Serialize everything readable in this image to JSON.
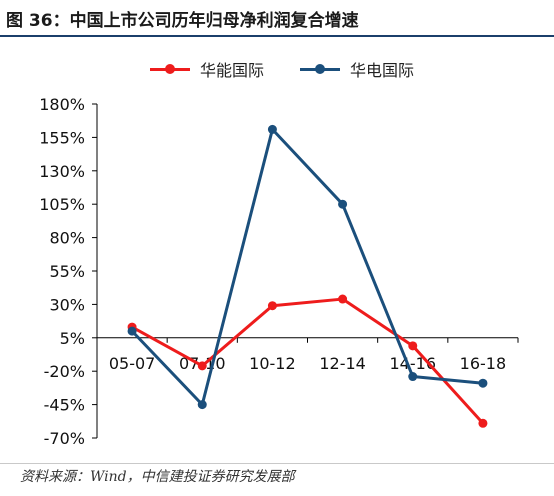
{
  "figure": {
    "title": "图 36：中国上市公司历年归母净利润复合增速",
    "source": "资料来源：Wind，中信建投证券研究发展部"
  },
  "chart_data": {
    "type": "line",
    "title": "图 36：中国上市公司历年归母净利润复合增速",
    "categories": [
      "05-07",
      "07-10",
      "10-12",
      "12-14",
      "14-16",
      "16-18"
    ],
    "y_ticks": [
      "180%",
      "155%",
      "130%",
      "105%",
      "80%",
      "55%",
      "30%",
      "5%",
      "-20%",
      "-45%",
      "-70%"
    ],
    "ylim": [
      -70,
      180
    ],
    "y_unit": "%",
    "x_axis_at": 5,
    "legend_position": "top-center",
    "grid": false,
    "series": [
      {
        "name": "华能国际",
        "color": "#ee1c1c",
        "values": [
          13,
          -16,
          29,
          34,
          -1,
          -59
        ]
      },
      {
        "name": "华电国际",
        "color": "#1b4f7c",
        "values": [
          10,
          -45,
          161,
          105,
          -24,
          -29
        ]
      }
    ]
  }
}
